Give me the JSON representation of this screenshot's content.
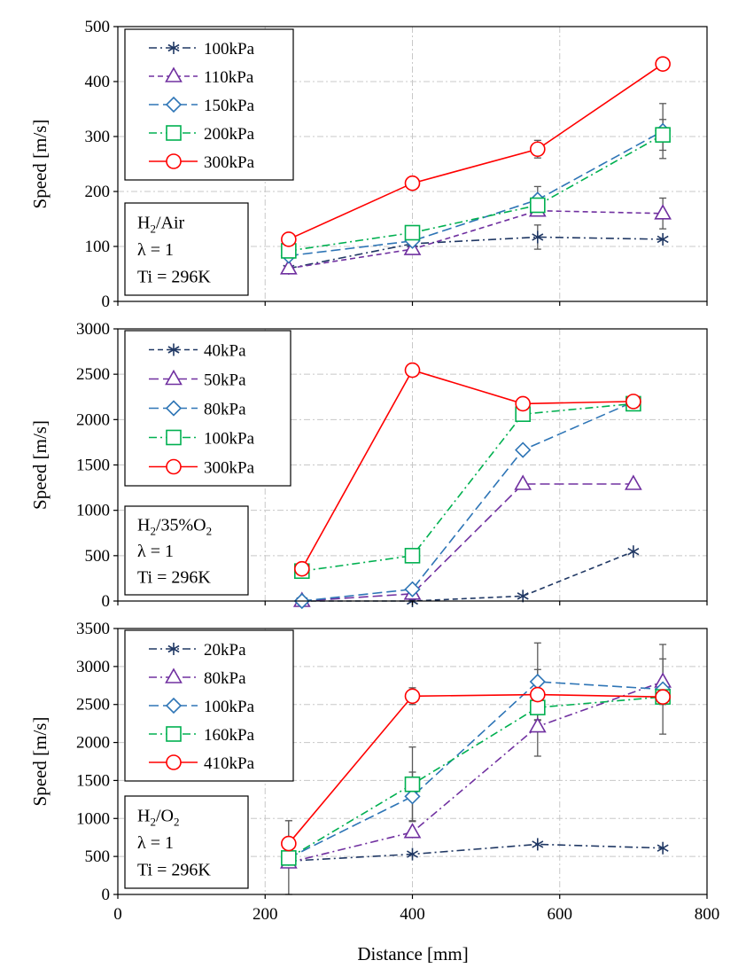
{
  "figure": {
    "xlabel": "Distance [mm]",
    "xlim": [
      0,
      800
    ],
    "xticks": [
      0,
      200,
      400,
      600,
      800
    ]
  },
  "chart_data": [
    {
      "type": "line",
      "ylabel": "Speed [m/s]",
      "ylim": [
        0,
        500
      ],
      "yticks": [
        0,
        100,
        200,
        300,
        400,
        500
      ],
      "legend": "top-left",
      "grid": true,
      "condition": {
        "mixture": {
          "main": "H",
          "sub": "2",
          "rest": "/Air"
        },
        "lambda": "λ = 1",
        "temperature": "Ti = 296K"
      },
      "series": [
        {
          "name": "100kPa",
          "color": "#203864",
          "marker": "asterisk",
          "dash": "dash-dot",
          "x": [
            232,
            400,
            570,
            740
          ],
          "y": [
            60,
            105,
            117,
            113
          ],
          "err": [
            null,
            null,
            22,
            null
          ]
        },
        {
          "name": "110kPa",
          "color": "#7030a0",
          "marker": "triangle",
          "dash": "dash",
          "x": [
            232,
            400,
            570,
            740
          ],
          "y": [
            60,
            95,
            165,
            160
          ],
          "err": [
            null,
            null,
            null,
            28
          ]
        },
        {
          "name": "150kPa",
          "color": "#2e75b6",
          "marker": "diamond",
          "dash": "long-dash",
          "x": [
            232,
            400,
            570,
            740
          ],
          "y": [
            83,
            110,
            185,
            310
          ],
          "err": [
            null,
            null,
            24,
            50
          ]
        },
        {
          "name": "200kPa",
          "color": "#00b050",
          "marker": "square",
          "dash": "dash-dot",
          "x": [
            232,
            400,
            570,
            740
          ],
          "y": [
            92,
            125,
            175,
            303
          ],
          "err": [
            null,
            null,
            null,
            28
          ]
        },
        {
          "name": "300kPa",
          "color": "#ff0000",
          "marker": "circle",
          "dash": "solid",
          "x": [
            232,
            400,
            570,
            740
          ],
          "y": [
            113,
            215,
            277,
            432
          ],
          "err": [
            null,
            null,
            16,
            null
          ]
        }
      ]
    },
    {
      "type": "line",
      "ylabel": "Speed [m/s]",
      "ylim": [
        0,
        3000
      ],
      "yticks": [
        0,
        500,
        1000,
        1500,
        2000,
        2500,
        3000
      ],
      "legend": "top-left",
      "grid": true,
      "condition": {
        "mixture": {
          "main": "H",
          "sub": "2",
          "rest": "/35%O",
          "sub2": "2"
        },
        "lambda": "λ = 1",
        "temperature": "Ti = 296K"
      },
      "series": [
        {
          "name": "40kPa",
          "color": "#203864",
          "marker": "asterisk",
          "dash": "dash",
          "x": [
            250,
            400,
            550,
            700
          ],
          "y": [
            0,
            0,
            55,
            545
          ],
          "err": [
            null,
            null,
            null,
            null
          ]
        },
        {
          "name": "50kPa",
          "color": "#7030a0",
          "marker": "triangle",
          "dash": "long-dash",
          "x": [
            250,
            400,
            550,
            700
          ],
          "y": [
            0,
            80,
            1290,
            1290
          ],
          "err": [
            null,
            null,
            null,
            null
          ]
        },
        {
          "name": "80kPa",
          "color": "#2e75b6",
          "marker": "diamond",
          "dash": "long-dash",
          "x": [
            250,
            400,
            550,
            700
          ],
          "y": [
            0,
            130,
            1665,
            2195
          ],
          "err": [
            null,
            null,
            null,
            null
          ]
        },
        {
          "name": "100kPa",
          "color": "#00b050",
          "marker": "square",
          "dash": "dash-dot",
          "x": [
            250,
            400,
            550,
            700
          ],
          "y": [
            330,
            500,
            2060,
            2175
          ],
          "err": [
            null,
            null,
            null,
            null
          ]
        },
        {
          "name": "300kPa",
          "color": "#ff0000",
          "marker": "circle",
          "dash": "solid",
          "x": [
            250,
            400,
            550,
            700
          ],
          "y": [
            355,
            2545,
            2175,
            2200
          ],
          "err": [
            null,
            null,
            null,
            null
          ]
        }
      ]
    },
    {
      "type": "line",
      "ylabel": "Speed [m/s]",
      "ylim": [
        0,
        3500
      ],
      "yticks": [
        0,
        500,
        1000,
        1500,
        2000,
        2500,
        3000,
        3500
      ],
      "legend": "top-left",
      "grid": true,
      "condition": {
        "mixture": {
          "main": "H",
          "sub": "2",
          "rest": "/O",
          "sub2": "2"
        },
        "lambda": "λ = 1",
        "temperature": "Ti = 296K"
      },
      "series": [
        {
          "name": "20kPa",
          "color": "#203864",
          "marker": "asterisk",
          "dash": "dash-dot",
          "x": [
            232,
            400,
            570,
            740
          ],
          "y": [
            440,
            530,
            660,
            610
          ],
          "err": [
            null,
            null,
            null,
            null
          ]
        },
        {
          "name": "80kPa",
          "color": "#7030a0",
          "marker": "triangle",
          "dash": "dash-dot",
          "x": [
            232,
            400,
            570,
            740
          ],
          "y": [
            420,
            820,
            2210,
            2800
          ],
          "err": [
            null,
            null,
            390,
            300
          ]
        },
        {
          "name": "100kPa",
          "color": "#2e75b6",
          "marker": "diamond",
          "dash": "long-dash",
          "x": [
            232,
            400,
            570,
            740
          ],
          "y": [
            480,
            1290,
            2800,
            2700
          ],
          "err": [
            null,
            320,
            510,
            590
          ]
        },
        {
          "name": "160kPa",
          "color": "#00b050",
          "marker": "square",
          "dash": "dash-dot",
          "x": [
            232,
            400,
            570,
            740
          ],
          "y": [
            480,
            1450,
            2460,
            2600
          ],
          "err": [
            490,
            490,
            null,
            null
          ]
        },
        {
          "name": "410kPa",
          "color": "#ff0000",
          "marker": "circle",
          "dash": "solid",
          "x": [
            232,
            400,
            570,
            740
          ],
          "y": [
            670,
            2610,
            2630,
            2600
          ],
          "err": [
            300,
            110,
            330,
            null
          ]
        }
      ]
    }
  ]
}
